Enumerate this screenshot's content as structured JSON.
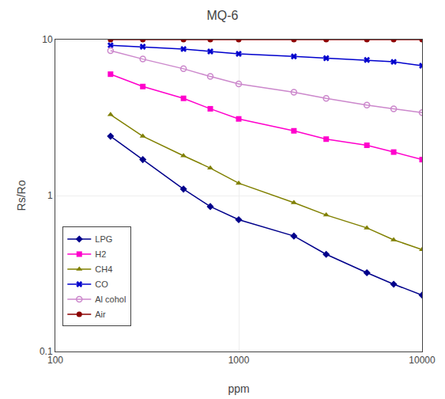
{
  "chart_data": {
    "type": "line",
    "title": "MQ-6",
    "xlabel": "ppm",
    "ylabel": "Rs/Ro",
    "x": [
      200,
      300,
      500,
      700,
      1000,
      2000,
      3000,
      5000,
      7000,
      10000
    ],
    "series": [
      {
        "name": "LPG",
        "color": "#00008B",
        "marker": "diamond",
        "values": [
          2.4,
          1.7,
          1.1,
          0.85,
          0.7,
          0.55,
          0.42,
          0.32,
          0.27,
          0.23
        ]
      },
      {
        "name": "H2",
        "color": "#FF00CC",
        "marker": "square",
        "values": [
          6.0,
          5.0,
          4.2,
          3.6,
          3.1,
          2.6,
          2.3,
          2.1,
          1.9,
          1.7
        ]
      },
      {
        "name": "CH4",
        "color": "#808000",
        "marker": "triangle-up",
        "values": [
          3.3,
          2.4,
          1.8,
          1.5,
          1.2,
          0.9,
          0.75,
          0.62,
          0.52,
          0.45
        ]
      },
      {
        "name": "CO",
        "color": "#0000CD",
        "marker": "x",
        "values": [
          9.2,
          9.0,
          8.7,
          8.4,
          8.1,
          7.8,
          7.6,
          7.4,
          7.2,
          6.8
        ]
      },
      {
        "name": "Al cohol",
        "color": "#CC88CC",
        "marker": "circle-open",
        "values": [
          8.5,
          7.5,
          6.5,
          5.8,
          5.2,
          4.6,
          4.2,
          3.8,
          3.6,
          3.4
        ]
      },
      {
        "name": "Air",
        "color": "#8B0000",
        "marker": "circle",
        "values": [
          10.0,
          10.0,
          10.0,
          10.0,
          10.0,
          10.0,
          10.0,
          10.0,
          10.0,
          10.0
        ]
      }
    ],
    "xlim": [
      100,
      10000
    ],
    "ylim": [
      0.1,
      10
    ],
    "xticks": [
      100,
      1000,
      10000
    ],
    "yticks": [
      0.1,
      1,
      10
    ],
    "log": true,
    "grid": true,
    "legend": "lower left"
  }
}
